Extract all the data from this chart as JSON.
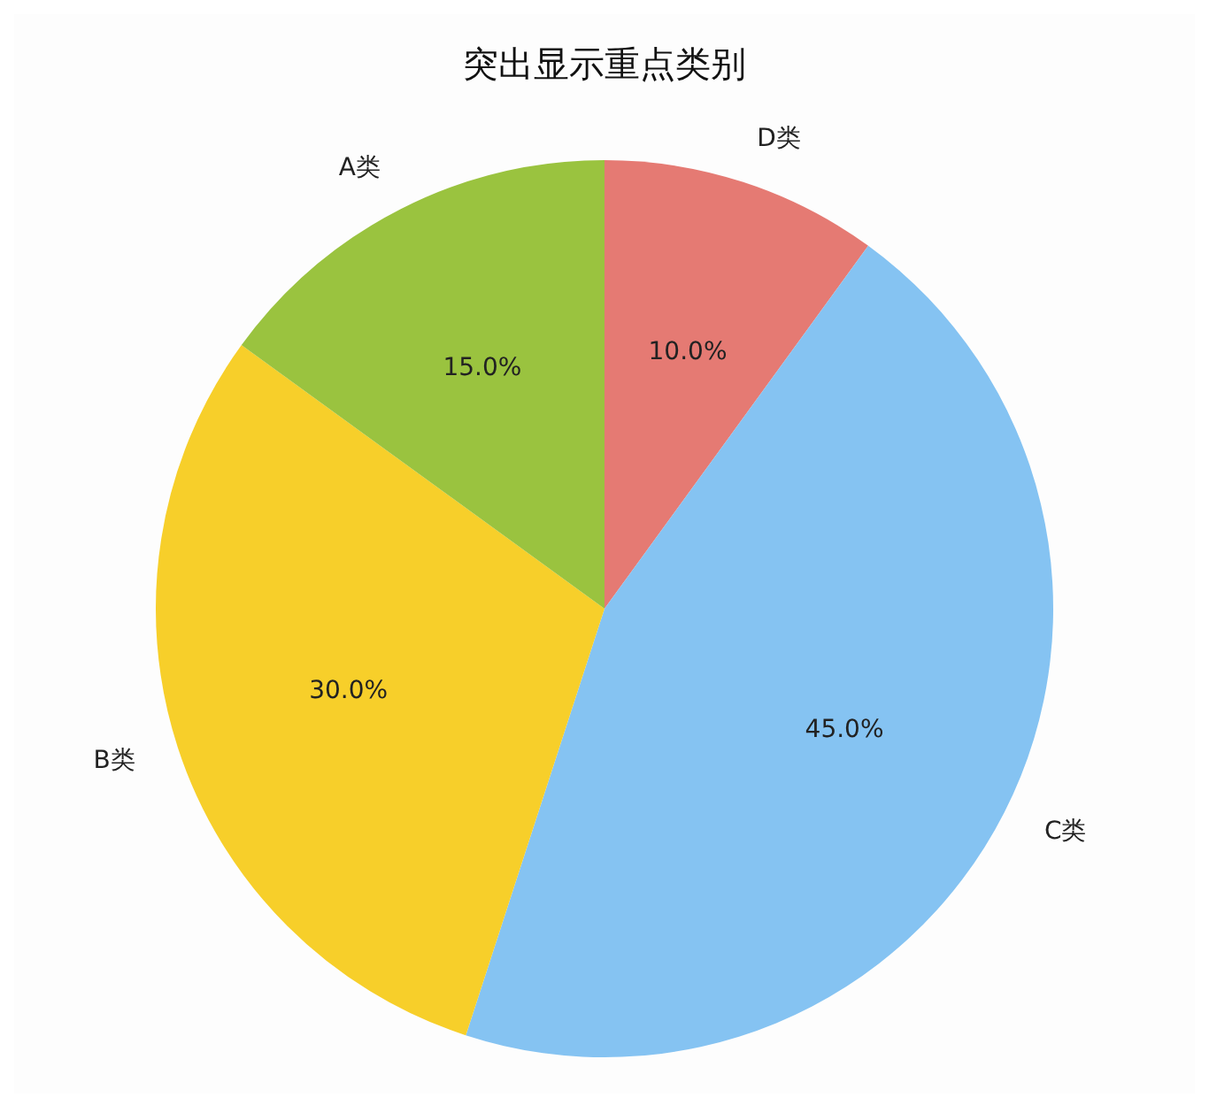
{
  "chart_data": {
    "type": "pie",
    "title": "突出显示重点类别",
    "categories": [
      "A类",
      "B类",
      "C类",
      "D类"
    ],
    "values": [
      15,
      30,
      45,
      10
    ],
    "value_labels": [
      "15.0%",
      "30.0%",
      "45.0%",
      "10.0%"
    ],
    "colors": [
      "#9ac33f",
      "#f7cf2a",
      "#85c3f2",
      "#e57a73"
    ],
    "legend": false
  }
}
